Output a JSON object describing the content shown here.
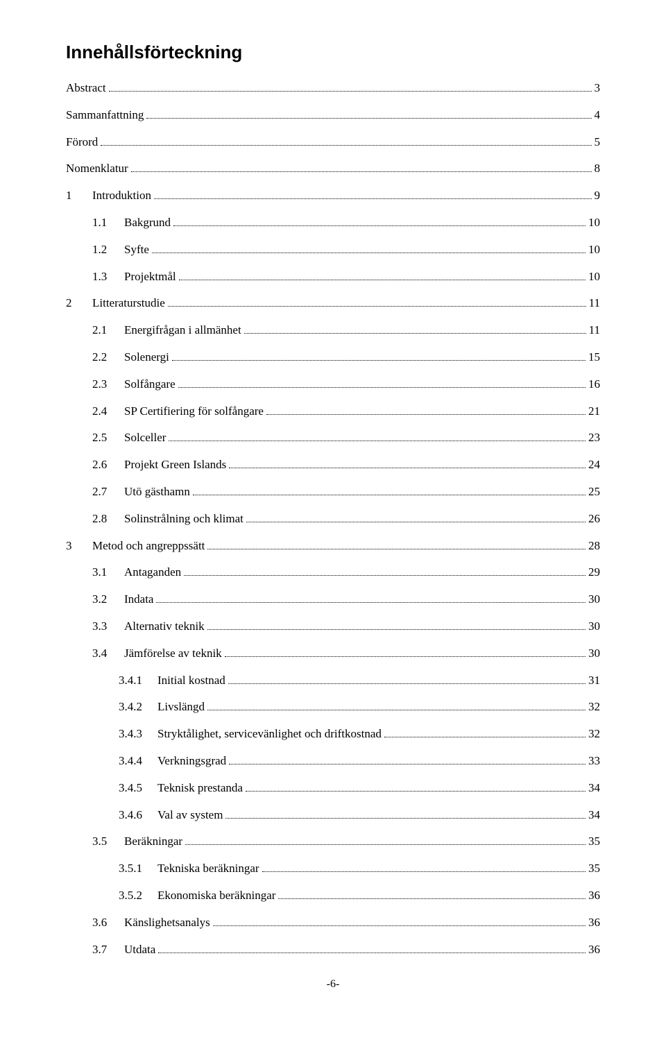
{
  "title": "Innehållsförteckning",
  "footer": "-6-",
  "entries": [
    {
      "indent": 0,
      "num": "",
      "text": "Abstract",
      "page": "3",
      "nonum": true
    },
    {
      "indent": 0,
      "num": "",
      "text": "Sammanfattning",
      "page": "4",
      "nonum": true
    },
    {
      "indent": 0,
      "num": "",
      "text": "Förord",
      "page": "5",
      "nonum": true
    },
    {
      "indent": 0,
      "num": "",
      "text": "Nomenklatur",
      "page": "8",
      "nonum": true
    },
    {
      "indent": 0,
      "num": "1",
      "text": "Introduktion",
      "page": "9"
    },
    {
      "indent": 1,
      "num": "1.1",
      "text": "Bakgrund",
      "page": "10"
    },
    {
      "indent": 1,
      "num": "1.2",
      "text": "Syfte",
      "page": "10"
    },
    {
      "indent": 1,
      "num": "1.3",
      "text": "Projektmål",
      "page": "10"
    },
    {
      "indent": 0,
      "num": "2",
      "text": "Litteraturstudie",
      "page": "11"
    },
    {
      "indent": 1,
      "num": "2.1",
      "text": "Energifrågan i allmänhet",
      "page": "11"
    },
    {
      "indent": 1,
      "num": "2.2",
      "text": "Solenergi",
      "page": "15"
    },
    {
      "indent": 1,
      "num": "2.3",
      "text": "Solfångare",
      "page": "16"
    },
    {
      "indent": 1,
      "num": "2.4",
      "text": "SP Certifiering för solfångare",
      "page": "21"
    },
    {
      "indent": 1,
      "num": "2.5",
      "text": "Solceller",
      "page": "23"
    },
    {
      "indent": 1,
      "num": "2.6",
      "text": "Projekt Green Islands",
      "page": "24"
    },
    {
      "indent": 1,
      "num": "2.7",
      "text": "Utö gästhamn",
      "page": "25"
    },
    {
      "indent": 1,
      "num": "2.8",
      "text": "Solinstrålning och klimat",
      "page": "26"
    },
    {
      "indent": 0,
      "num": "3",
      "text": "Metod och angreppssätt",
      "page": "28"
    },
    {
      "indent": 1,
      "num": "3.1",
      "text": "Antaganden",
      "page": "29"
    },
    {
      "indent": 1,
      "num": "3.2",
      "text": "Indata",
      "page": "30"
    },
    {
      "indent": 1,
      "num": "3.3",
      "text": "Alternativ teknik",
      "page": "30"
    },
    {
      "indent": 1,
      "num": "3.4",
      "text": "Jämförelse av teknik",
      "page": "30"
    },
    {
      "indent": 2,
      "num": "3.4.1",
      "text": "Initial kostnad",
      "page": "31"
    },
    {
      "indent": 2,
      "num": "3.4.2",
      "text": "Livslängd",
      "page": "32"
    },
    {
      "indent": 2,
      "num": "3.4.3",
      "text": "Stryktålighet, servicevänlighet och driftkostnad",
      "page": "32"
    },
    {
      "indent": 2,
      "num": "3.4.4",
      "text": "Verkningsgrad",
      "page": "33"
    },
    {
      "indent": 2,
      "num": "3.4.5",
      "text": "Teknisk prestanda",
      "page": "34"
    },
    {
      "indent": 2,
      "num": "3.4.6",
      "text": "Val av system",
      "page": "34"
    },
    {
      "indent": 1,
      "num": "3.5",
      "text": "Beräkningar",
      "page": "35"
    },
    {
      "indent": 2,
      "num": "3.5.1",
      "text": "Tekniska beräkningar",
      "page": "35"
    },
    {
      "indent": 2,
      "num": "3.5.2",
      "text": "Ekonomiska beräkningar",
      "page": "36"
    },
    {
      "indent": 1,
      "num": "3.6",
      "text": "Känslighetsanalys",
      "page": "36"
    },
    {
      "indent": 1,
      "num": "3.7",
      "text": "Utdata",
      "page": "36"
    }
  ]
}
